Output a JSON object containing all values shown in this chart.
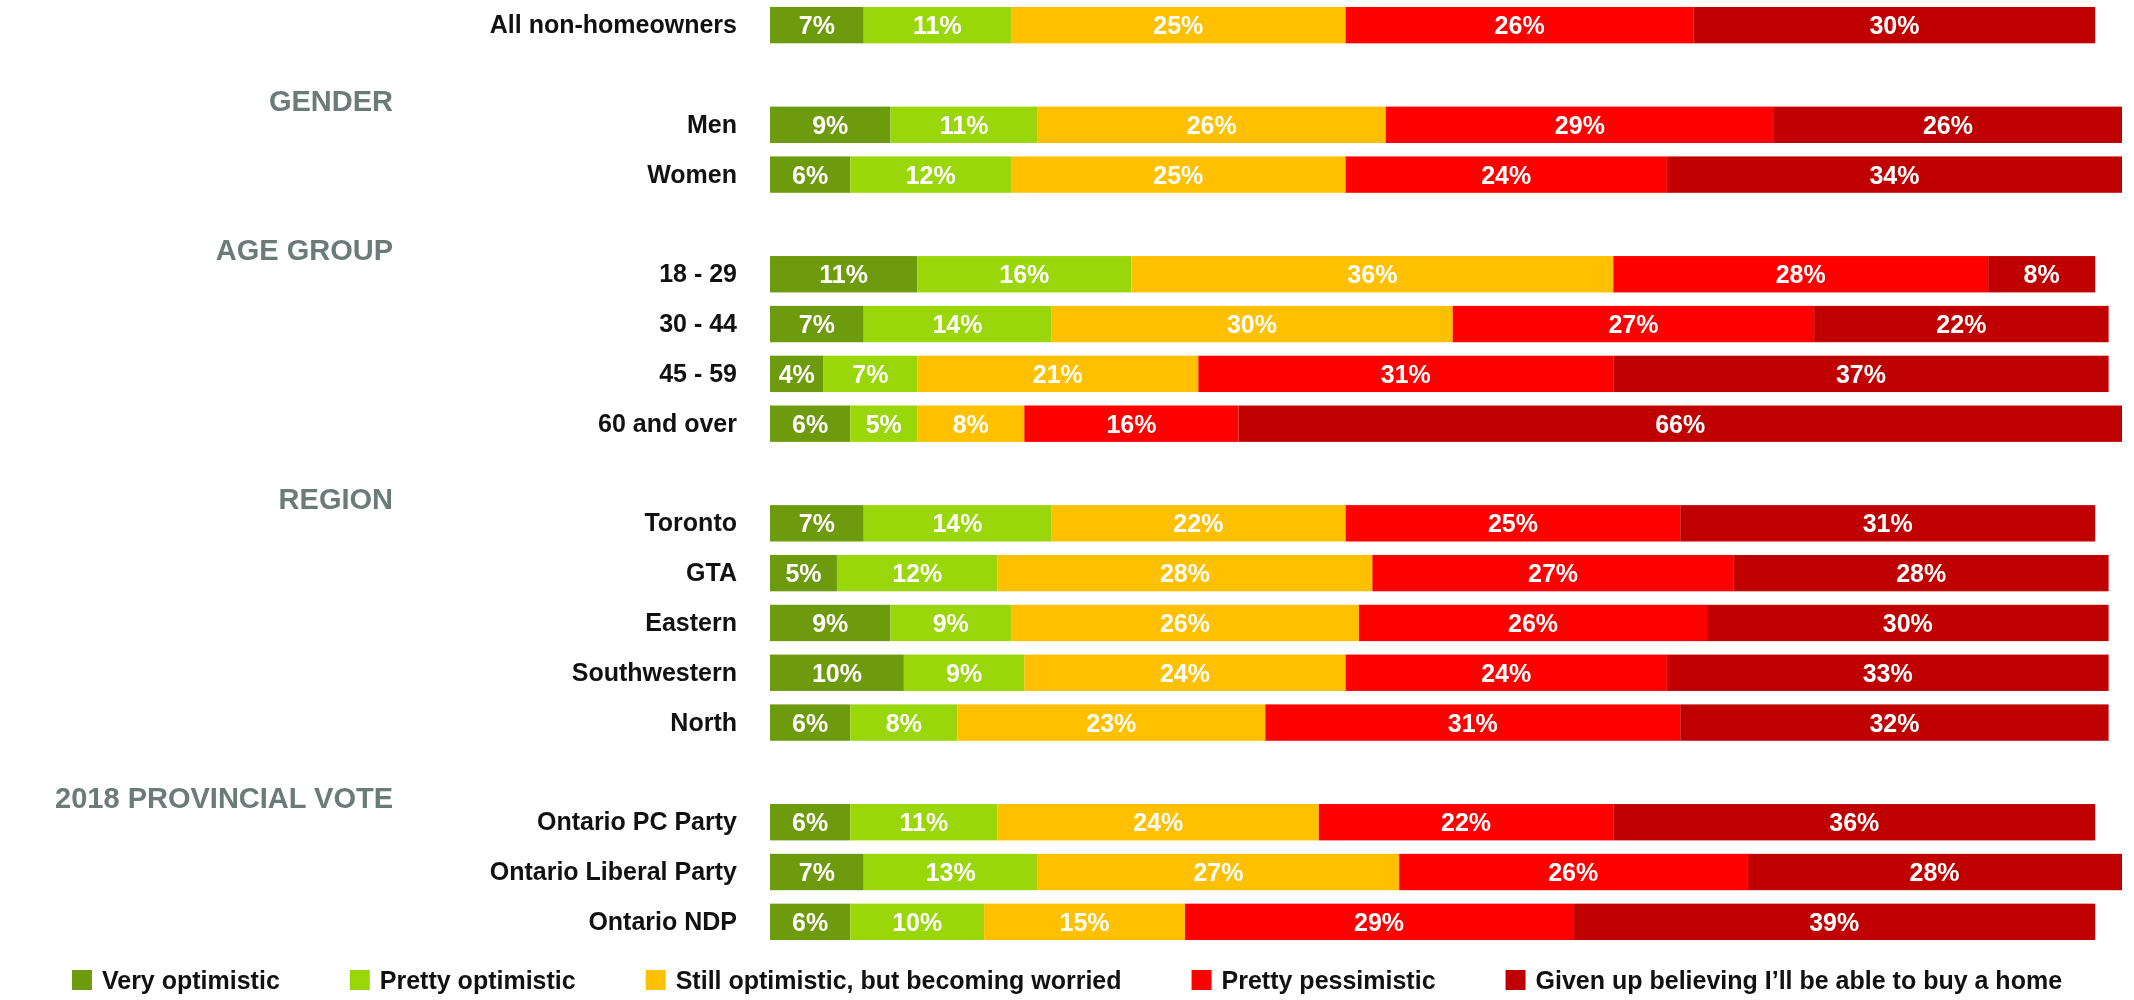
{
  "chart_data": {
    "type": "bar",
    "orientation": "horizontal",
    "stacked": true,
    "legend": "bottom",
    "categories": [
      "All non-homeowners",
      null,
      "Men",
      "Women",
      null,
      "18 - 29",
      "30 - 44",
      "45 - 59",
      "60 and over",
      null,
      "Toronto",
      "GTA",
      "Eastern",
      "Southwestern",
      "North",
      null,
      "Ontario PC Party",
      "Ontario Liberal Party",
      "Ontario NDP"
    ],
    "series": [
      {
        "name": "Very optimistic",
        "color": "#6e9a0e",
        "values": [
          7,
          null,
          9,
          6,
          null,
          11,
          7,
          4,
          6,
          null,
          7,
          5,
          9,
          10,
          6,
          null,
          6,
          7,
          6
        ],
        "value_labels": [
          "7%",
          null,
          "9%",
          "6%",
          null,
          "11%",
          "7%",
          "4%",
          "6%",
          null,
          "7%",
          "5%",
          "9%",
          "10%",
          "6%",
          null,
          "6%",
          "7%",
          "6%"
        ]
      },
      {
        "name": "Pretty optimistic",
        "color": "#99d60a",
        "values": [
          11,
          null,
          11,
          12,
          null,
          16,
          14,
          7,
          5,
          null,
          14,
          12,
          9,
          9,
          8,
          null,
          11,
          13,
          10
        ],
        "value_labels": [
          "11%",
          null,
          "11%",
          "12%",
          null,
          "16%",
          "14%",
          "7%",
          "5%",
          null,
          "14%",
          "12%",
          "9%",
          "9%",
          "8%",
          null,
          "11%",
          "13%",
          "10%"
        ]
      },
      {
        "name": "Still optimistic, but becoming worried",
        "color": "#ffc000",
        "values": [
          25,
          null,
          26,
          25,
          null,
          36,
          30,
          21,
          8,
          null,
          22,
          28,
          26,
          24,
          23,
          null,
          24,
          27,
          15
        ],
        "value_labels": [
          "25%",
          null,
          "26%",
          "25%",
          null,
          "36%",
          "30%",
          "21%",
          "8%",
          null,
          "22%",
          "28%",
          "26%",
          "24%",
          "23%",
          null,
          "24%",
          "27%",
          "15%"
        ]
      },
      {
        "name": "Pretty pessimistic",
        "color": "#ff0000",
        "values": [
          26,
          null,
          29,
          24,
          null,
          28,
          27,
          31,
          16,
          null,
          25,
          27,
          26,
          24,
          31,
          null,
          22,
          26,
          29
        ],
        "value_labels": [
          "26%",
          null,
          "29%",
          "24%",
          null,
          "28%",
          "27%",
          "31%",
          "16%",
          null,
          "25%",
          "27%",
          "26%",
          "24%",
          "31%",
          null,
          "22%",
          "26%",
          "29%"
        ]
      },
      {
        "name": "Given up believing I’ll be able to buy a home",
        "color": "#c00000",
        "values": [
          30,
          null,
          26,
          34,
          null,
          8,
          22,
          37,
          66,
          null,
          31,
          28,
          30,
          33,
          32,
          null,
          36,
          28,
          39
        ],
        "value_labels": [
          "30%",
          null,
          "26%",
          "34%",
          null,
          "8%",
          "22%",
          "37%",
          "66%",
          null,
          "31%",
          "28%",
          "30%",
          "33%",
          "32%",
          null,
          "36%",
          "28%",
          "39%"
        ]
      }
    ],
    "annotations": [
      "GENDER",
      "AGE GROUP",
      "REGION",
      "2018 PROVINCIAL VOTE"
    ]
  }
}
